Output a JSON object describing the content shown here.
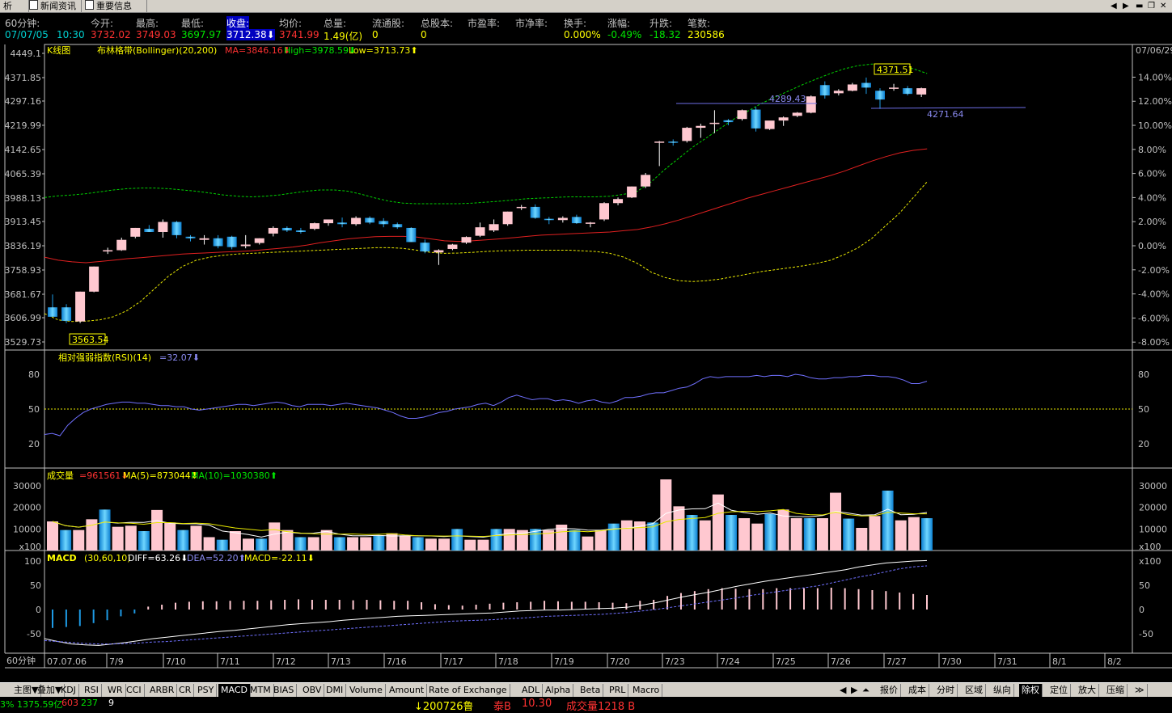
{
  "tabs": [
    {
      "label": "析"
    },
    {
      "label": "新闻资讯",
      "icon": "document-icon"
    },
    {
      "label": "重要信息",
      "icon": "document-icon"
    }
  ],
  "info": {
    "period_label": "60分钟:",
    "date": "07/07/05",
    "time": "10:30",
    "fields": [
      {
        "label": "今开:",
        "value": "3732.02",
        "color": "red"
      },
      {
        "label": "最高:",
        "value": "3749.03",
        "color": "red"
      },
      {
        "label": "最低:",
        "value": "3697.97",
        "color": "grn"
      },
      {
        "label": "收盘:",
        "value": "3712.38⬇",
        "color": "wht"
      },
      {
        "label": "均价:",
        "value": "3741.99",
        "color": "red"
      },
      {
        "label": "总量:",
        "value": "1.49(亿)",
        "color": "yel"
      },
      {
        "label": "流通股:",
        "value": "0",
        "color": "yel"
      },
      {
        "label": "总股本:",
        "value": "0",
        "color": "yel"
      },
      {
        "label": "市盈率:",
        "value": "",
        "color": "yel"
      },
      {
        "label": "市净率:",
        "value": "",
        "color": "yel"
      },
      {
        "label": "换手:",
        "value": "0.000%",
        "color": "yel"
      },
      {
        "label": "涨幅:",
        "value": "-0.49%",
        "color": "grn"
      },
      {
        "label": "升跌:",
        "value": "-18.32",
        "color": "grn"
      },
      {
        "label": "笔数:",
        "value": "230586",
        "color": "yel"
      }
    ]
  },
  "kline": {
    "title": "K线图",
    "boll_name": "布林格带(Bollinger)(20,200)",
    "ma": "MA=3846.16⬇",
    "high": "High=3978.59⬇",
    "low": "Low=3713.73⬆",
    "y_ticks": [
      "4449.1",
      "4371.85",
      "4297.16",
      "4219.99",
      "4142.65",
      "4065.39",
      "3988.13",
      "3913.45",
      "3836.19",
      "3758.93",
      "3681.67",
      "3606.99",
      "3529.73"
    ],
    "pct_ticks": [
      "14.00%",
      "12.00%",
      "10.00%",
      "8.00%",
      "6.00%",
      "4.00%",
      "2.00%",
      "0.00%",
      "-2.00%",
      "-4.00%",
      "-6.00%",
      "-8.00%"
    ],
    "right_date": "07/06/29",
    "max_label": "4371.51",
    "min_label": "3563.54",
    "line1_label": "4289.43",
    "line2_label": "4271.64"
  },
  "rsi": {
    "title": "相对强弱指数(RSI)(14)",
    "value": "=32.07⬇",
    "ticks": [
      "80",
      "50",
      "20"
    ]
  },
  "volume": {
    "title": "成交量",
    "value": "=961561⬇",
    "ma5": "MA(5)=873044⬇",
    "ma10": "MA(10)=1030380⬆",
    "ticks": [
      "30000",
      "20000",
      "10000",
      "x100"
    ]
  },
  "macd": {
    "title": "MACD",
    "params": "(30,60,10)",
    "diff": "DIFF=63.26⬇",
    "dea": "DEA=52.20⬆",
    "macd": "MACD=-22.11⬇",
    "ticks": [
      "100",
      "50",
      "0",
      "-50"
    ],
    "right_ticks": [
      "x100",
      "50",
      "0",
      "-50"
    ]
  },
  "xaxis": {
    "period": "60分钟",
    "labels": [
      "07.07.06",
      "7/9",
      "7/10",
      "7/11",
      "7/12",
      "7/13",
      "7/16",
      "7/17",
      "7/18",
      "7/19",
      "7/20",
      "7/23",
      "7/24",
      "7/25",
      "7/26",
      "7/27",
      "7/30",
      "7/31",
      "8/1",
      "8/2"
    ]
  },
  "bottom_tabs": [
    "主图▼",
    "叠加▼",
    "KDJ",
    "RSI",
    "WR",
    "CCI",
    "ARBR",
    "CR",
    "PSY",
    "MACD",
    "MTM",
    "BIAS",
    "OBV",
    "DMI",
    "Volume",
    "Amount",
    "Rate of Exchange",
    "ADL",
    "Alpha",
    "Beta",
    "PRL",
    "Macro"
  ],
  "bottom_right": [
    "报价",
    "成本",
    "分时",
    "区域",
    "纵向",
    "除权",
    "定位",
    "放大",
    "压缩"
  ],
  "status": {
    "left": "3% 1375.59亿",
    "n1": "603",
    "n2": "237",
    "n3": "9",
    "ticker": "↓200726鲁",
    "name": "泰B",
    "price": "10.30",
    "vol": "成交量1218 B"
  },
  "colors": {
    "up": "#ff3232",
    "down": "#00e600",
    "upfill": "#ffc8d0",
    "downfill": "#1e9be6"
  }
}
